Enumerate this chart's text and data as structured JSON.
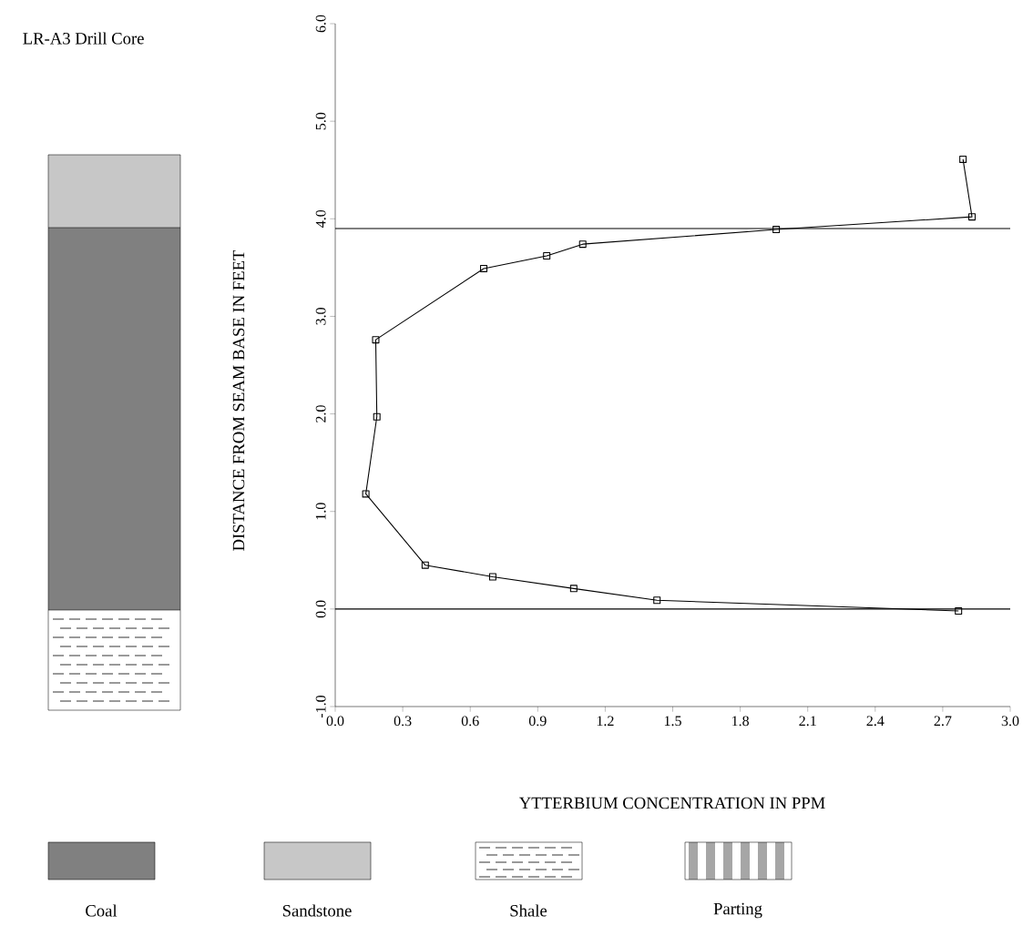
{
  "chart_data": {
    "type": "line",
    "title": "LR-A3 Drill Core",
    "xlabel": "YTTERBIUM CONCENTRATION IN PPM",
    "ylabel": "DISTANCE FROM SEAM BASE IN FEET",
    "series": [
      {
        "color": "#000000",
        "x": [
          2.79,
          2.83,
          1.96,
          1.1,
          0.94,
          0.66,
          0.18,
          0.185,
          0.136,
          0.4,
          0.7,
          1.06,
          1.43,
          2.77
        ],
        "values": [
          4.61,
          4.02,
          3.89,
          3.74,
          3.62,
          3.49,
          2.76,
          1.97,
          1.18,
          0.45,
          0.33,
          0.21,
          0.09,
          -0.02
        ]
      }
    ],
    "xlim": [
      0,
      3
    ],
    "ylim": [
      -1,
      6
    ],
    "xticks": [
      {
        "value": 0,
        "label": "0.0"
      },
      {
        "value": 0.3,
        "label": "0.3"
      },
      {
        "value": 0.6,
        "label": "0.6"
      },
      {
        "value": 0.9,
        "label": "0.9"
      },
      {
        "value": 1.2,
        "label": "1.2"
      },
      {
        "value": 1.5,
        "label": "1.5"
      },
      {
        "value": 1.8,
        "label": "1.8"
      },
      {
        "value": 2.1,
        "label": "2.1"
      },
      {
        "value": 2.4,
        "label": "2.4"
      },
      {
        "value": 2.7,
        "label": "2.7"
      },
      {
        "value": 3,
        "label": "3.0"
      }
    ],
    "yticks": [
      {
        "value": -1,
        "label": "-1.0"
      },
      {
        "value": 0,
        "label": "0.0"
      },
      {
        "value": 1,
        "label": "1.0"
      },
      {
        "value": 2,
        "label": "2.0"
      },
      {
        "value": 3,
        "label": "3.0"
      },
      {
        "value": 4,
        "label": "4.0"
      },
      {
        "value": 5,
        "label": "5.0"
      },
      {
        "value": 6,
        "label": "6.0"
      }
    ],
    "ref_lines": [
      {
        "axis": "y",
        "value": 0
      },
      {
        "axis": "y",
        "value": 3.9
      }
    ],
    "annotations": [
      "Coal",
      "Sandstone",
      "Shale",
      "Parting"
    ],
    "marker": "square",
    "line_style": "solid"
  }
}
